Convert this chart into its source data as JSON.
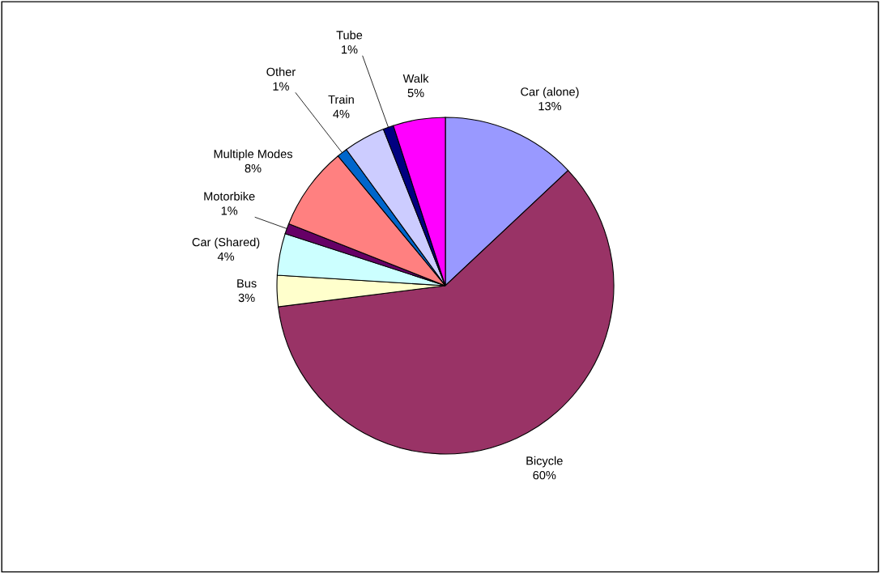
{
  "chart_data": {
    "type": "pie",
    "categories": [
      "Car (alone)",
      "Bicycle",
      "Bus",
      "Car (Shared)",
      "Motorbike",
      "Multiple Modes",
      "Other",
      "Train",
      "Tube",
      "Walk"
    ],
    "values": [
      13,
      60,
      3,
      4,
      1,
      8,
      1,
      4,
      1,
      5
    ],
    "value_labels": [
      "13%",
      "60%",
      "3%",
      "4%",
      "1%",
      "8%",
      "1%",
      "4%",
      "1%",
      "5%"
    ],
    "colors": [
      "#9999ff",
      "#993366",
      "#ffffcc",
      "#ccffff",
      "#660066",
      "#ff8080",
      "#0066cc",
      "#ccccff",
      "#000080",
      "#ff00ff"
    ]
  }
}
